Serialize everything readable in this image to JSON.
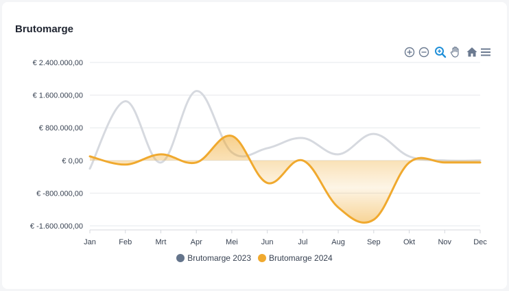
{
  "card": {
    "title": "Brutomarge"
  },
  "toolbar": {
    "icons": [
      "zoom-in-icon",
      "zoom-out-icon",
      "zoom-select-icon",
      "pan-hand-icon",
      "home-reset-icon",
      "menu-icon"
    ]
  },
  "legend": {
    "series_2023": "Brutomarge 2023",
    "series_2024": "Brutomarge 2024"
  },
  "colors": {
    "series_2023": "#64748b",
    "series_2023_line": "#d6d9df",
    "series_2024": "#f0a92e",
    "accent_tool": "#1f8fd8",
    "tool": "#6b7a90"
  },
  "chart_data": {
    "type": "area",
    "title": "Brutomarge",
    "categories": [
      "Jan",
      "Feb",
      "Mrt",
      "Apr",
      "Mei",
      "Jun",
      "Jul",
      "Aug",
      "Sep",
      "Okt",
      "Nov",
      "Dec"
    ],
    "series": [
      {
        "name": "Brutomarge 2023",
        "values": [
          -200000,
          1450000,
          -50000,
          1700000,
          200000,
          300000,
          550000,
          150000,
          650000,
          100000,
          0,
          0
        ]
      },
      {
        "name": "Brutomarge 2024",
        "values": [
          100000,
          -100000,
          150000,
          -50000,
          600000,
          -550000,
          0,
          -1150000,
          -1450000,
          -50000,
          -50000,
          -50000
        ]
      }
    ],
    "ylim": [
      -1600000,
      2400000
    ],
    "yticks": [
      2400000,
      1600000,
      800000,
      0,
      -800000,
      -1600000
    ],
    "ytick_labels": [
      "€ 2.400.000,00",
      "€ 1.600.000,00",
      "€ 800.000,00",
      "€ 0,00",
      "€ -800.000,00",
      "€ -1.600.000,00"
    ],
    "xlabel": "",
    "ylabel": "",
    "grid": true,
    "legend_position": "bottom-center"
  }
}
